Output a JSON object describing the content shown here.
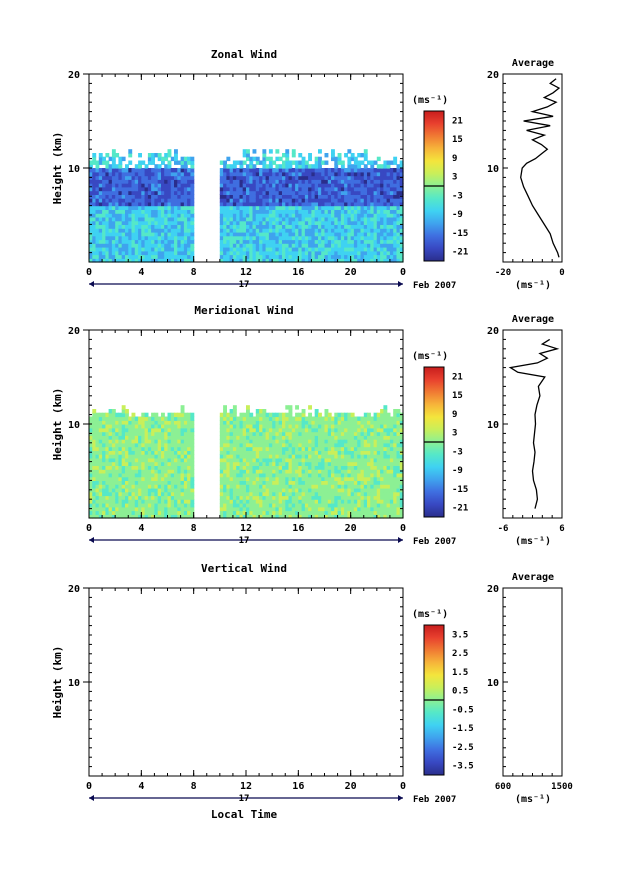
{
  "chart_data": [
    {
      "type": "heatmap",
      "title": "Zonal Wind",
      "ylabel": "Height (km)",
      "ylim": [
        0,
        20
      ],
      "yticks": [
        "20",
        "10"
      ],
      "xlim": [
        0,
        24
      ],
      "xticks": [
        "0",
        "4",
        "8",
        "12",
        "16",
        "20",
        "0"
      ],
      "date_label": "17",
      "date_suffix": "Feb 2007",
      "colorbar": {
        "unit": "(ms⁻¹)",
        "ticks": [
          "21",
          "15",
          "9",
          "3",
          "-3",
          "-9",
          "-15",
          "-21"
        ],
        "range": [
          -24,
          24
        ]
      },
      "data_gap_hours": [
        8,
        10
      ],
      "field": {
        "lower_layer": {
          "top_km": 10,
          "value_range": [
            -12,
            -3
          ]
        },
        "upper_layer": {
          "from_km": 6,
          "to_km": 10,
          "value_range": [
            -21,
            -12
          ]
        },
        "ceiling_km": 12
      },
      "average": {
        "title": "Average",
        "xlabel": "(ms⁻¹)",
        "xticks": [
          "-20",
          "0"
        ],
        "xlim": [
          -20,
          0
        ],
        "ylim": [
          0,
          20
        ],
        "yticks": [
          "20",
          "10"
        ],
        "profile": [
          {
            "h": 0.5,
            "v": -1
          },
          {
            "h": 1,
            "v": -1.5
          },
          {
            "h": 2,
            "v": -3
          },
          {
            "h": 3,
            "v": -4
          },
          {
            "h": 4,
            "v": -6
          },
          {
            "h": 5,
            "v": -8
          },
          {
            "h": 6,
            "v": -10
          },
          {
            "h": 7,
            "v": -11.5
          },
          {
            "h": 8,
            "v": -13
          },
          {
            "h": 9,
            "v": -14
          },
          {
            "h": 10,
            "v": -13.5
          },
          {
            "h": 10.5,
            "v": -12
          },
          {
            "h": 11,
            "v": -9
          },
          {
            "h": 11.5,
            "v": -7
          },
          {
            "h": 12,
            "v": -5
          },
          {
            "h": 12.5,
            "v": -7
          },
          {
            "h": 13,
            "v": -10
          },
          {
            "h": 13.5,
            "v": -6
          },
          {
            "h": 14,
            "v": -12
          },
          {
            "h": 14.5,
            "v": -4
          },
          {
            "h": 15,
            "v": -13
          },
          {
            "h": 15.5,
            "v": -3
          },
          {
            "h": 16,
            "v": -10
          },
          {
            "h": 16.5,
            "v": -5
          },
          {
            "h": 17,
            "v": -2
          },
          {
            "h": 17.5,
            "v": -6
          },
          {
            "h": 18,
            "v": -3
          },
          {
            "h": 18.5,
            "v": -1
          },
          {
            "h": 19,
            "v": -4
          },
          {
            "h": 19.5,
            "v": -2
          }
        ]
      }
    },
    {
      "type": "heatmap",
      "title": "Meridional Wind",
      "ylabel": "Height (km)",
      "ylim": [
        0,
        20
      ],
      "yticks": [
        "20",
        "10"
      ],
      "xlim": [
        0,
        24
      ],
      "xticks": [
        "0",
        "4",
        "8",
        "12",
        "16",
        "20",
        "0"
      ],
      "date_label": "17",
      "date_suffix": "Feb 2007",
      "colorbar": {
        "unit": "(ms⁻¹)",
        "ticks": [
          "21",
          "15",
          "9",
          "3",
          "-3",
          "-9",
          "-15",
          "-21"
        ],
        "range": [
          -24,
          24
        ]
      },
      "data_gap_hours": [
        8,
        10
      ],
      "field": {
        "lower_layer": {
          "top_km": 11,
          "value_range": [
            -3,
            3
          ]
        },
        "ceiling_km": 12
      },
      "average": {
        "title": "Average",
        "xlabel": "(ms⁻¹)",
        "xticks": [
          "-6",
          "6"
        ],
        "xlim": [
          -6,
          6
        ],
        "ylim": [
          0,
          20
        ],
        "yticks": [
          "20",
          "10"
        ],
        "profile": [
          {
            "h": 1,
            "v": 0.5
          },
          {
            "h": 2,
            "v": 1
          },
          {
            "h": 3,
            "v": 0.8
          },
          {
            "h": 4,
            "v": 0.2
          },
          {
            "h": 5,
            "v": 0
          },
          {
            "h": 6,
            "v": 0.3
          },
          {
            "h": 7,
            "v": 0.5
          },
          {
            "h": 8,
            "v": 0.2
          },
          {
            "h": 9,
            "v": 0.4
          },
          {
            "h": 10,
            "v": 0.6
          },
          {
            "h": 11,
            "v": 0.5
          },
          {
            "h": 12,
            "v": 0.9
          },
          {
            "h": 13,
            "v": 1.5
          },
          {
            "h": 14,
            "v": 1.2
          },
          {
            "h": 15,
            "v": 2.5
          },
          {
            "h": 15.5,
            "v": -3
          },
          {
            "h": 16,
            "v": -4.5
          },
          {
            "h": 16.5,
            "v": 1
          },
          {
            "h": 17,
            "v": 3
          },
          {
            "h": 17.5,
            "v": 1.5
          },
          {
            "h": 18,
            "v": 5
          },
          {
            "h": 18.5,
            "v": 2
          },
          {
            "h": 19,
            "v": 3.5
          }
        ]
      }
    },
    {
      "type": "heatmap",
      "title": "Vertical Wind",
      "ylabel": "Height (km)",
      "ylim": [
        0,
        20
      ],
      "yticks": [
        "20",
        "10"
      ],
      "xlim": [
        0,
        24
      ],
      "xticks": [
        "0",
        "4",
        "8",
        "12",
        "16",
        "20",
        "0"
      ],
      "date_label": "17",
      "date_suffix": "Feb 2007",
      "xlabel": "Local Time",
      "colorbar": {
        "unit": "(ms⁻¹)",
        "ticks": [
          "3.5",
          "2.5",
          "1.5",
          "0.5",
          "-0.5",
          "-1.5",
          "-2.5",
          "-3.5"
        ],
        "range": [
          -4,
          4
        ]
      },
      "field": null,
      "average": {
        "title": "Average",
        "xlabel": "(ms⁻¹)",
        "xticks": [
          "600",
          "1500"
        ],
        "xlim": [
          600,
          1500
        ],
        "ylim": [
          0,
          20
        ],
        "yticks": [
          "20",
          "10"
        ],
        "profile": []
      }
    }
  ]
}
